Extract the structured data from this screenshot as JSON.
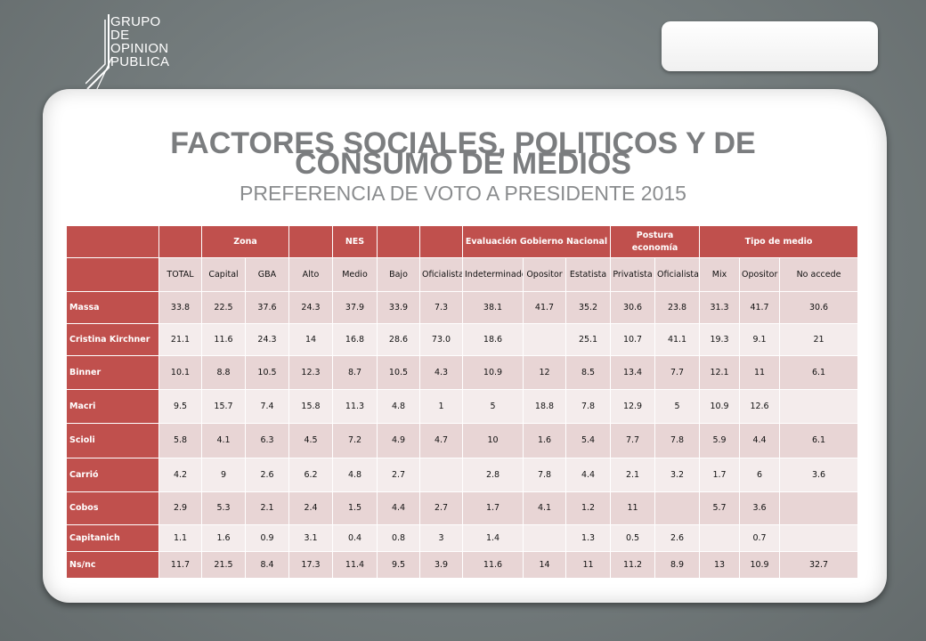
{
  "logo": {
    "lines": [
      "GRUPO",
      "DE",
      "OPINION",
      "PUBLICA"
    ]
  },
  "title": {
    "line1": "FACTORES SOCIALES, POLITICOS Y DE",
    "line2": "CONSUMO DE MEDIOS"
  },
  "subtitle": "PREFERENCIA DE VOTO A PRESIDENTE 2015",
  "table": {
    "group_headers": [
      "",
      "",
      "Zona",
      "",
      "NES",
      "",
      "",
      "Evaluación Gobierno Nacional",
      "Postura economía",
      "Tipo de medio"
    ],
    "columns": [
      "TOTAL",
      "Capital",
      "GBA",
      "Alto",
      "Medio",
      "Bajo",
      "Oficialista",
      "Indeterminado",
      "Opositor",
      "Estatista",
      "Privatista",
      "Oficialista",
      "Mix",
      "Opositor",
      "No accede"
    ],
    "rows": [
      {
        "label": "Massa",
        "values": [
          "33.8",
          "22.5",
          "37.6",
          "24.3",
          "37.9",
          "33.9",
          "7.3",
          "38.1",
          "41.7",
          "35.2",
          "30.6",
          "23.8",
          "31.3",
          "41.7",
          "30.6"
        ]
      },
      {
        "label": "Cristina Kirchner",
        "values": [
          "21.1",
          "11.6",
          "24.3",
          "14",
          "16.8",
          "28.6",
          "73.0",
          "18.6",
          "",
          "25.1",
          "10.7",
          "41.1",
          "19.3",
          "9.1",
          "21"
        ]
      },
      {
        "label": "Binner",
        "values": [
          "10.1",
          "8.8",
          "10.5",
          "12.3",
          "8.7",
          "10.5",
          "4.3",
          "10.9",
          "12",
          "8.5",
          "13.4",
          "7.7",
          "12.1",
          "11",
          "6.1"
        ]
      },
      {
        "label": "Macri",
        "values": [
          "9.5",
          "15.7",
          "7.4",
          "15.8",
          "11.3",
          "4.8",
          "1",
          "5",
          "18.8",
          "7.8",
          "12.9",
          "5",
          "10.9",
          "12.6",
          ""
        ]
      },
      {
        "label": "Scioli",
        "values": [
          "5.8",
          "4.1",
          "6.3",
          "4.5",
          "7.2",
          "4.9",
          "4.7",
          "10",
          "1.6",
          "5.4",
          "7.7",
          "7.8",
          "5.9",
          "4.4",
          "6.1"
        ]
      },
      {
        "label": "Carrió",
        "values": [
          "4.2",
          "9",
          "2.6",
          "6.2",
          "4.8",
          "2.7",
          "",
          "2.8",
          "7.8",
          "4.4",
          "2.1",
          "3.2",
          "1.7",
          "6",
          "3.6"
        ]
      },
      {
        "label": "Cobos",
        "values": [
          "2.9",
          "5.3",
          "2.1",
          "2.4",
          "1.5",
          "4.4",
          "2.7",
          "1.7",
          "4.1",
          "1.2",
          "11",
          "",
          "5.7",
          "3.6",
          ""
        ]
      },
      {
        "label": "Capitanich",
        "values": [
          "1.1",
          "1.6",
          "0.9",
          "3.1",
          "0.4",
          "0.8",
          "3",
          "1.4",
          "",
          "1.3",
          "0.5",
          "2.6",
          "",
          "0.7",
          ""
        ]
      },
      {
        "label": "Ns/nc",
        "values": [
          "11.7",
          "21.5",
          "8.4",
          "17.3",
          "11.4",
          "9.5",
          "3.9",
          "11.6",
          "14",
          "11",
          "11.2",
          "8.9",
          "13",
          "10.9",
          "32.7"
        ]
      }
    ]
  },
  "colors": {
    "header_red": "#c0504d",
    "row_pink": "#e8d5d5",
    "title_gray": "#7b7d7f"
  }
}
